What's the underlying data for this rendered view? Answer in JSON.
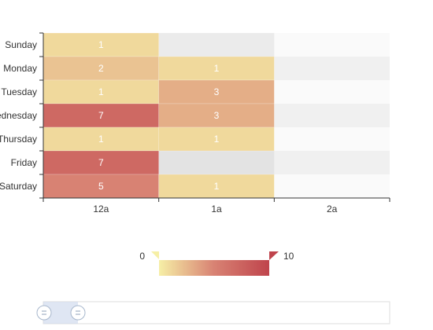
{
  "chart_data": {
    "type": "heatmap",
    "title": "",
    "x_categories": [
      "12a",
      "1a",
      "2a"
    ],
    "y_categories": [
      "Sunday",
      "Monday",
      "Tuesday",
      "Wednesday",
      "Thursday",
      "Friday",
      "Saturday"
    ],
    "cells": [
      {
        "x": "12a",
        "y": "Sunday",
        "value": 1
      },
      {
        "x": "12a",
        "y": "Monday",
        "value": 2
      },
      {
        "x": "12a",
        "y": "Tuesday",
        "value": 1
      },
      {
        "x": "12a",
        "y": "Wednesday",
        "value": 7
      },
      {
        "x": "12a",
        "y": "Thursday",
        "value": 1
      },
      {
        "x": "12a",
        "y": "Friday",
        "value": 7
      },
      {
        "x": "12a",
        "y": "Saturday",
        "value": 5
      },
      {
        "x": "1a",
        "y": "Monday",
        "value": 1
      },
      {
        "x": "1a",
        "y": "Tuesday",
        "value": 3
      },
      {
        "x": "1a",
        "y": "Wednesday",
        "value": 3
      },
      {
        "x": "1a",
        "y": "Thursday",
        "value": 1
      },
      {
        "x": "1a",
        "y": "Saturday",
        "value": 1
      }
    ],
    "visual_map": {
      "min": 0,
      "max": 10,
      "min_label": "0",
      "max_label": "10",
      "colors": [
        "#f6efa6",
        "#d88273",
        "#bf444c"
      ]
    },
    "split_area": true,
    "data_zoom": {
      "type": "slider",
      "range": [
        0,
        0.1
      ]
    }
  },
  "colors": {
    "stripe_a": "#fafafa",
    "stripe_b": "#f0f0f0",
    "axis": "#333333",
    "zoom_fill": "#d2dbee"
  },
  "icons": {
    "slider_handle": "slider-handle-icon"
  }
}
